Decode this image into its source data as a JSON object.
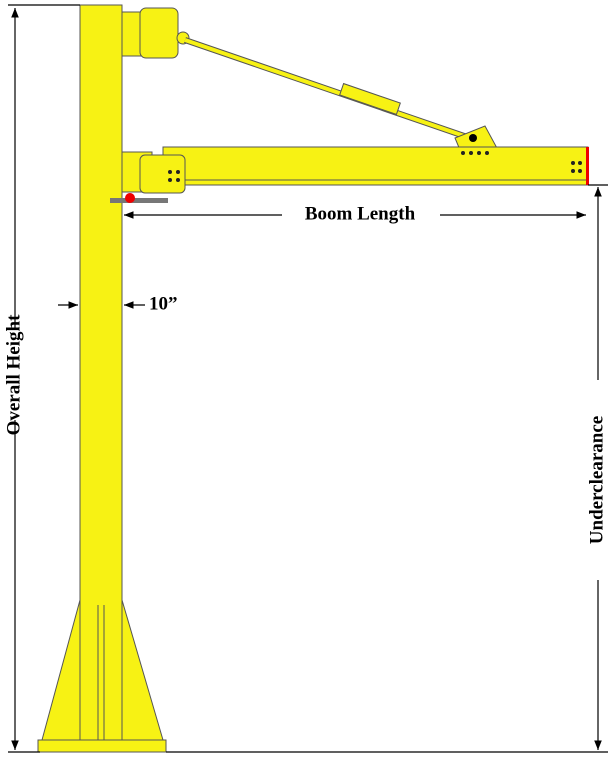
{
  "labels": {
    "overall_height": "Overall Height",
    "boom_length": "Boom Length",
    "mast_width": "10”",
    "underclearance": "Underclearance"
  }
}
